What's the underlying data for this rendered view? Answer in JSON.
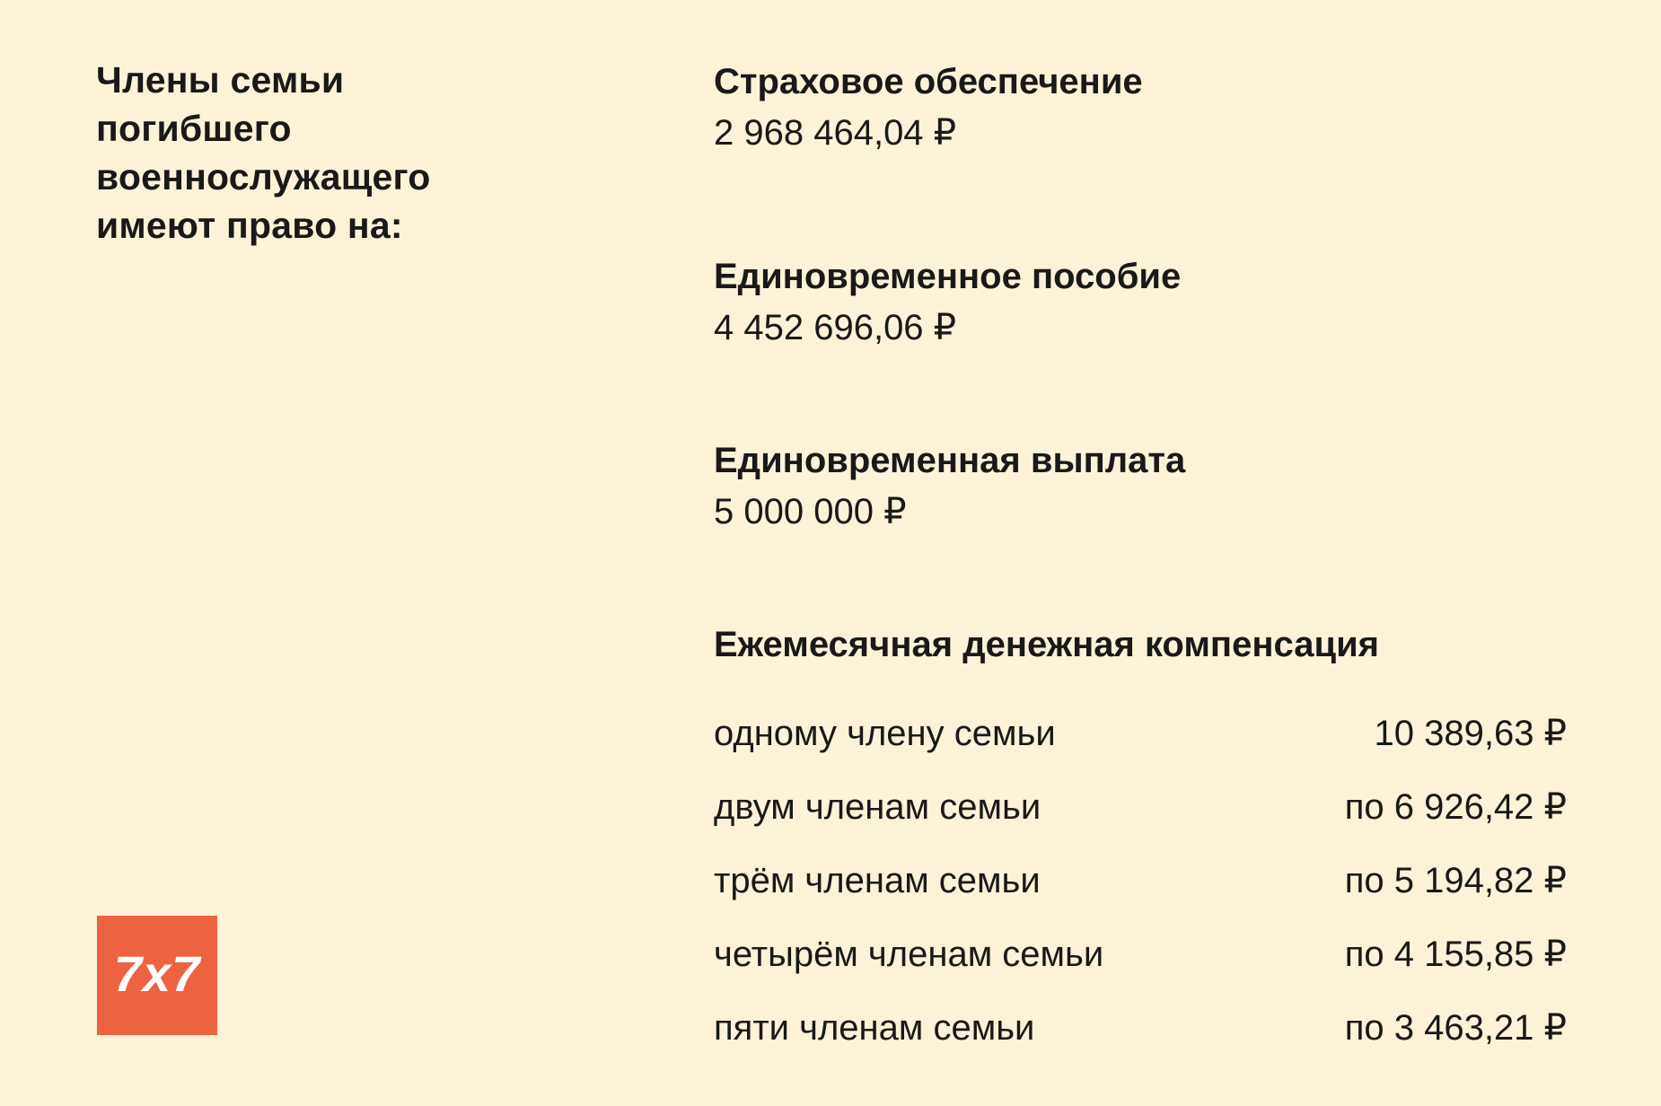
{
  "page": {
    "background_color": "#FCF2D8",
    "text_color": "#191919",
    "accent_color": "#ED6342"
  },
  "heading": {
    "full_text": "Члены семьи погибшего военнослужащего имеют право на:",
    "lines": [
      "Члены семьи",
      "погибшего",
      "военнослужащего",
      "имеют право на:"
    ]
  },
  "benefits": [
    {
      "title": "Страховое обеспечение",
      "amount": "2 968 464,04 ₽"
    },
    {
      "title": "Единовременное пособие",
      "amount": "4 452 696,06 ₽"
    },
    {
      "title": "Единовременная выплата",
      "amount": "5 000 000 ₽"
    }
  ],
  "monthly_compensation": {
    "title": "Ежемесячная денежная компенсация",
    "rows": [
      {
        "label": "одному члену семьи",
        "value": "10 389,63 ₽"
      },
      {
        "label": "двум членам семьи",
        "value": "по 6 926,42 ₽"
      },
      {
        "label": "трём членам семьи",
        "value": "по 5 194,82 ₽"
      },
      {
        "label": "четырём членам семьи",
        "value": "по 4 155,85 ₽"
      },
      {
        "label": "пяти членам семьи",
        "value": "по 3 463,21 ₽"
      }
    ]
  },
  "logo": {
    "label": "7x7",
    "background_color": "#ED6342",
    "text_color": "#FFFFFF"
  }
}
